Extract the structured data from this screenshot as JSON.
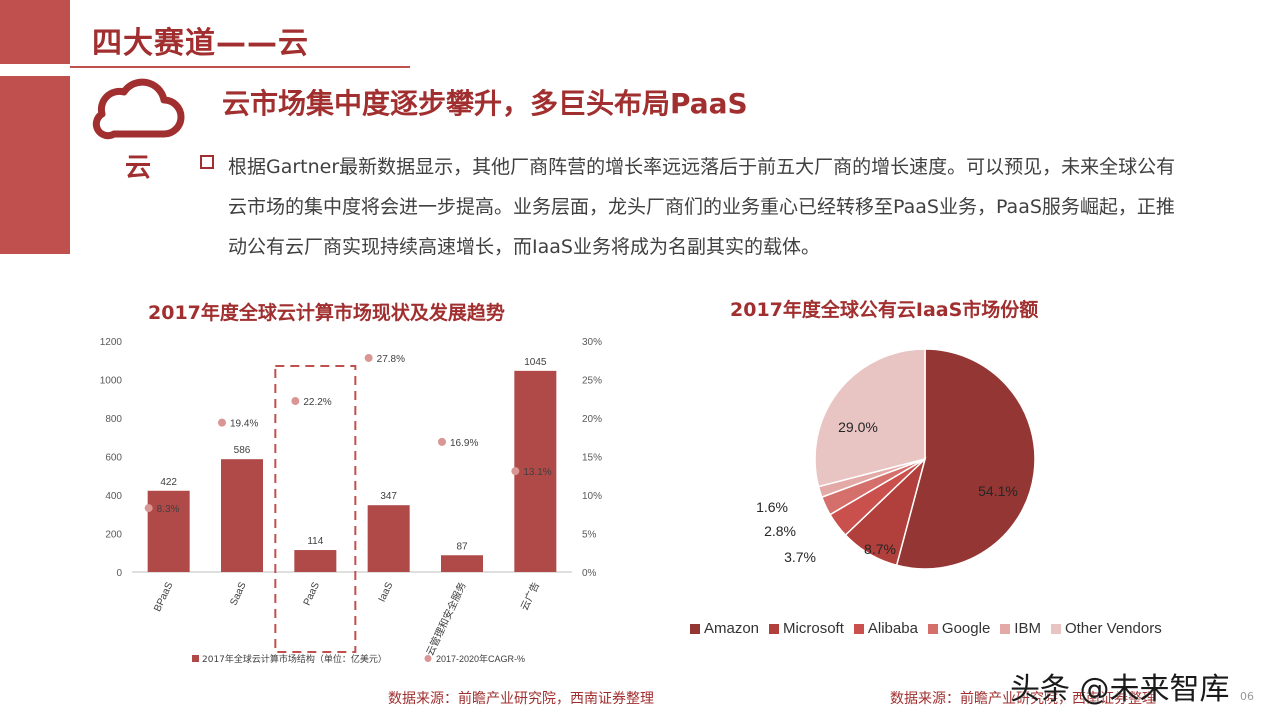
{
  "header": {
    "section_title": "四大赛道——云"
  },
  "sidebar": {
    "icon": "cloud-icon",
    "label": "云"
  },
  "main": {
    "headline": "云市场集中度逐步攀升，多巨头布局PaaS",
    "body": "根据Gartner最新数据显示，其他厂商阵营的增长率远远落后于前五大厂商的增长速度。可以预见，未来全球公有云市场的集中度将会进一步提高。业务层面，龙头厂商们的业务重心已经转移至PaaS业务，PaaS服务崛起，正推动公有云厂商实现持续高速增长，而IaaS业务将成为名副其实的载体。"
  },
  "colors": {
    "accent": "#a12f2f",
    "bar": "#b04a48",
    "cagr_dot": "#d99694"
  },
  "footer": {
    "source_left": "数据来源：前瞻产业研究院，西南证券整理",
    "source_right": "数据来源：前瞻产业研究院，西南证券整理",
    "watermark": "头条 @未来智库",
    "page": "06"
  },
  "chart_data": [
    {
      "type": "bar",
      "title": "2017年度全球云计算市场现状及发展趋势",
      "categories": [
        "BPaaS",
        "SaaS",
        "PaaS",
        "IaaS",
        "云管理和安全服务",
        "云广告"
      ],
      "series": [
        {
          "name": "2017年全球云计算市场结构（单位：亿美元）",
          "type": "bar",
          "values": [
            422,
            586,
            114,
            347,
            87,
            1045
          ],
          "labels": [
            "422",
            "586",
            "114",
            "347",
            "87",
            "1045"
          ]
        },
        {
          "name": "2017-2020年CAGR-%",
          "type": "scatter",
          "values": [
            8.3,
            19.4,
            22.2,
            27.8,
            16.9,
            13.1
          ],
          "labels": [
            "8.3%",
            "19.4%",
            "22.2%",
            "27.8%",
            "16.9%",
            "13.1%"
          ]
        }
      ],
      "y_left": {
        "ticks": [
          "0",
          "200",
          "400",
          "600",
          "800",
          "1000",
          "1200"
        ],
        "ylim": [
          0,
          1200
        ]
      },
      "y_right": {
        "ticks": [
          "0%",
          "5%",
          "10%",
          "15%",
          "20%",
          "25%",
          "30%"
        ],
        "ylim": [
          0,
          30
        ]
      },
      "highlight": "PaaS",
      "legend_position": "bottom"
    },
    {
      "type": "pie",
      "title": "2017年度全球公有云IaaS市场份额",
      "categories": [
        "Amazon",
        "Microsoft",
        "Alibaba",
        "Google",
        "IBM",
        "Other Vendors"
      ],
      "values": [
        54.1,
        8.7,
        3.7,
        2.8,
        1.6,
        29.0
      ],
      "labels": [
        "54.1%",
        "8.7%",
        "3.7%",
        "2.8%",
        "1.6%",
        "29.0%"
      ],
      "colors": [
        "#943634",
        "#b13f3c",
        "#c9504d",
        "#d46f6c",
        "#e3a9a7",
        "#e8c4c3"
      ],
      "legend_position": "bottom"
    }
  ]
}
